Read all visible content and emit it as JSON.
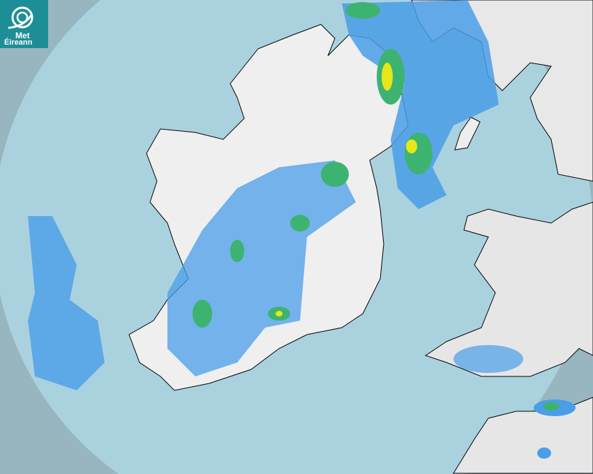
{
  "logo": {
    "line1": "Met",
    "line2": "Éireann",
    "icon": "met-eireann-swirl-logo"
  },
  "map": {
    "type": "rain-radar",
    "colors": {
      "outside_coverage": "#98b6c0",
      "sea": "#aad2de",
      "land": "#eeeeee",
      "rain_light": "#4a9ee8",
      "rain_moderate": "#3cb371",
      "rain_heavy": "#e6e619",
      "border": "#000000"
    }
  }
}
